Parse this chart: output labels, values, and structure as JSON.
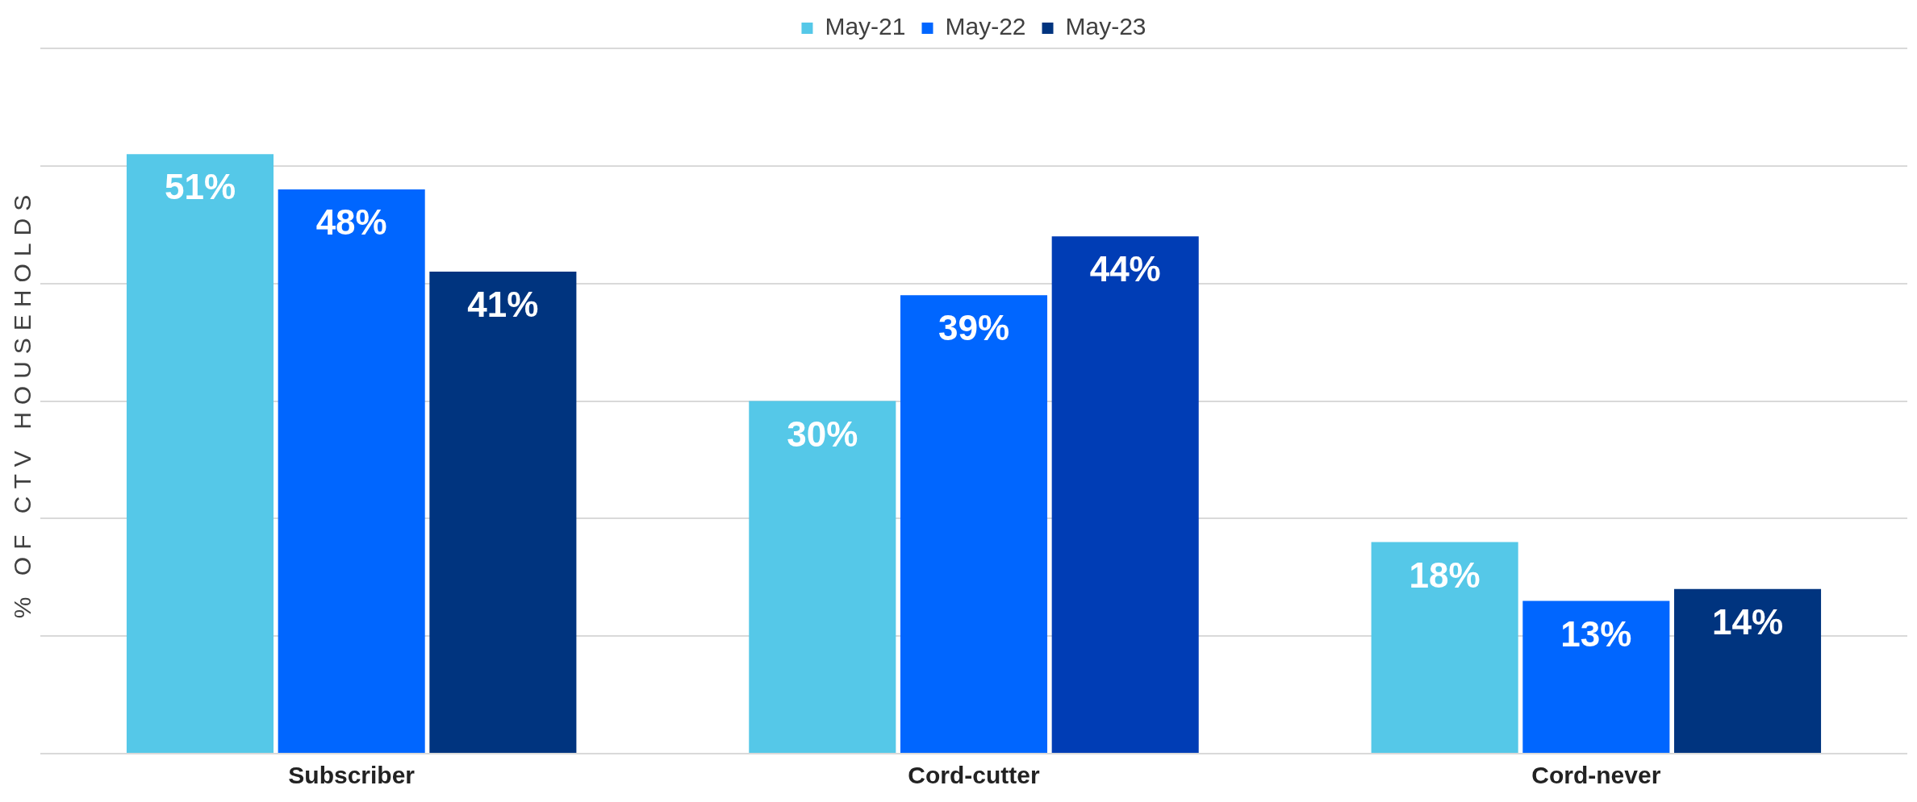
{
  "chart_data": {
    "type": "bar",
    "ylabel": "% OF CTV HOUSEHOLDS",
    "categories": [
      "Subscriber",
      "Cord-cutter",
      "Cord-never"
    ],
    "series": [
      {
        "name": "May-21",
        "color": "#55c8e8",
        "values": [
          51,
          30,
          18
        ],
        "value_labels": [
          "51%",
          "30%",
          "18%"
        ]
      },
      {
        "name": "May-22",
        "color": "#0066ff",
        "values": [
          48,
          39,
          13
        ],
        "value_labels": [
          "48%",
          "39%",
          "13%"
        ]
      },
      {
        "name": "May-23",
        "color": "#00347f",
        "colors": [
          "#00347f",
          "#003db5",
          "#00347f"
        ],
        "values": [
          41,
          44,
          14
        ],
        "value_labels": [
          "41%",
          "44%",
          "14%"
        ]
      }
    ],
    "tick_labels": "x",
    "grid": "y",
    "legend": "top"
  }
}
